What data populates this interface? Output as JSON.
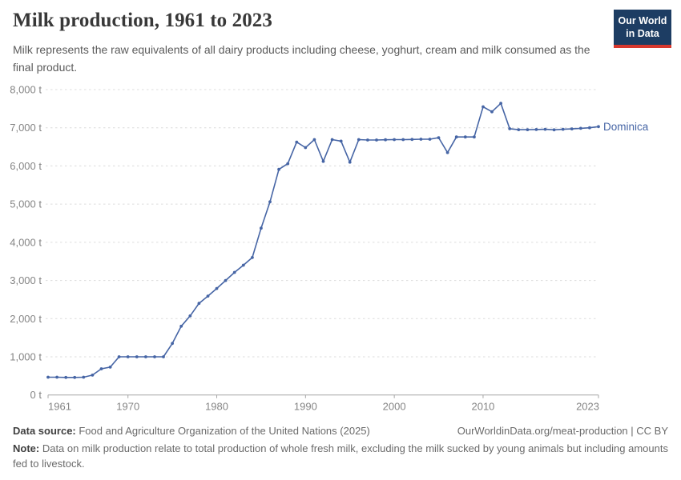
{
  "header": {
    "title": "Milk production, 1961 to 2023",
    "subtitle": "Milk represents the raw equivalents of all dairy products including cheese, yoghurt, cream and milk consumed as the final product.",
    "logo": {
      "line1": "Our World",
      "line2": "in Data"
    }
  },
  "chart_data": {
    "type": "line",
    "title": "Milk production, 1961 to 2023",
    "entity": "Dominica",
    "unit": "t",
    "legend_position": "end-of-line-label",
    "grid": "horizontal-dashed",
    "ylim": [
      0,
      8000
    ],
    "yticks": [
      0,
      1000,
      2000,
      3000,
      4000,
      5000,
      6000,
      7000,
      8000
    ],
    "ytick_labels": [
      "0 t",
      "1,000 t",
      "2,000 t",
      "3,000 t",
      "4,000 t",
      "5,000 t",
      "6,000 t",
      "7,000 t",
      "8,000 t"
    ],
    "xticks": [
      1961,
      1970,
      1980,
      1990,
      2000,
      2010,
      2023
    ],
    "xtick_labels": [
      "1961",
      "1970",
      "1980",
      "1990",
      "2000",
      "2010",
      "2023"
    ],
    "x": [
      1961,
      1962,
      1963,
      1964,
      1965,
      1966,
      1967,
      1968,
      1969,
      1970,
      1971,
      1972,
      1973,
      1974,
      1975,
      1976,
      1977,
      1978,
      1979,
      1980,
      1981,
      1982,
      1983,
      1984,
      1985,
      1986,
      1987,
      1988,
      1989,
      1990,
      1991,
      1992,
      1993,
      1994,
      1995,
      1996,
      1997,
      1998,
      1999,
      2000,
      2001,
      2002,
      2003,
      2004,
      2005,
      2006,
      2007,
      2008,
      2009,
      2010,
      2011,
      2012,
      2013,
      2014,
      2015,
      2016,
      2017,
      2018,
      2019,
      2020,
      2021,
      2022,
      2023
    ],
    "series": [
      {
        "name": "Dominica",
        "color": "#4665a5",
        "values": [
          465,
          465,
          460,
          460,
          465,
          520,
          685,
          730,
          1000,
          1000,
          1000,
          1000,
          1000,
          1000,
          1350,
          1800,
          2070,
          2400,
          2590,
          2790,
          3000,
          3210,
          3400,
          3600,
          4370,
          5060,
          5910,
          6060,
          6625,
          6480,
          6690,
          6120,
          6690,
          6650,
          6100,
          6690,
          6680,
          6680,
          6685,
          6690,
          6690,
          6695,
          6700,
          6700,
          6740,
          6350,
          6760,
          6760,
          6760,
          7550,
          7420,
          7640,
          6975,
          6950,
          6950,
          6955,
          6960,
          6945,
          6960,
          6970,
          6985,
          7000,
          7030
        ]
      }
    ]
  },
  "footer": {
    "datasource_label": "Data source:",
    "datasource_text": " Food and Agriculture Organization of the United Nations (2025)",
    "link_text": "OurWorldinData.org/meat-production | CC BY",
    "note_label": "Note:",
    "note_text": " Data on milk production relate to total production of whole fresh milk, excluding the milk sucked by young animals but including amounts fed to livestock."
  },
  "colors": {
    "line": "#4665a5",
    "grid": "#dcdcdc",
    "axis": "#a5a5a5",
    "tick_text": "#858585",
    "title_text": "#383838",
    "subtitle_text": "#5b5b5b",
    "logo_bg": "#1d3d63",
    "logo_bar": "#d7382e"
  }
}
